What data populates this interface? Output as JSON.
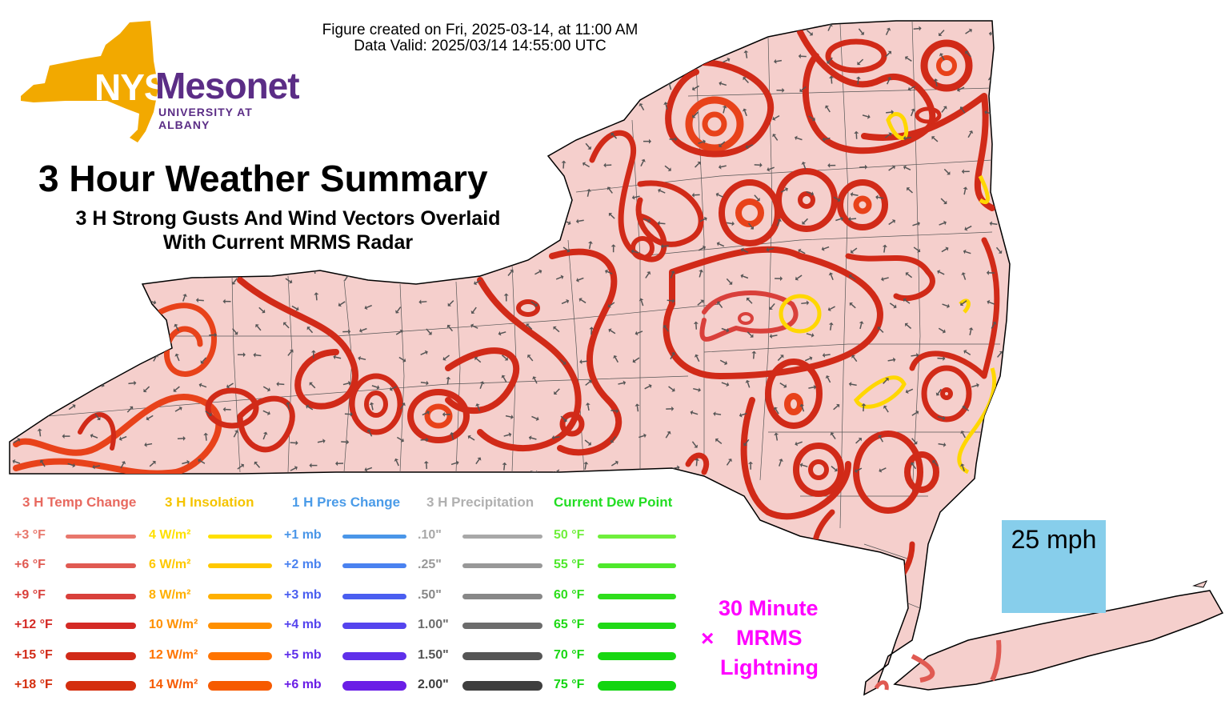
{
  "header": {
    "created_line": "Figure created on Fri, 2025-03-14, at 11:00 AM",
    "valid_line": "Data Valid: 2025/03/14 14:55:00 UTC"
  },
  "logo": {
    "nys": "NYS",
    "mesonet": "Mesonet",
    "university": "UNIVERSITY AT ALBANY",
    "state_color": "#f2a900",
    "brand_color": "#5b2d86"
  },
  "title": "3 Hour Weather Summary",
  "subtitle_line1": "3 H Strong Gusts And Wind Vectors Overlaid",
  "subtitle_line2": "With Current MRMS Radar",
  "legend": {
    "temp": {
      "header": "3 H Temp Change",
      "header_color": "#e8695f",
      "items": [
        {
          "label": "+3 °F",
          "color": "#e8776c"
        },
        {
          "label": "+6 °F",
          "color": "#e05a52"
        },
        {
          "label": "+9 °F",
          "color": "#d9403b"
        },
        {
          "label": "+12 °F",
          "color": "#d42a25"
        },
        {
          "label": "+15 °F",
          "color": "#d12a18"
        },
        {
          "label": "+18 °F",
          "color": "#d42e0e"
        }
      ]
    },
    "insolation": {
      "header": "3 H Insolation",
      "header_color": "#f5c400",
      "items": [
        {
          "label": "4 W/m²",
          "color": "#ffe000"
        },
        {
          "label": "6 W/m²",
          "color": "#ffc800"
        },
        {
          "label": "8 W/m²",
          "color": "#ffb000"
        },
        {
          "label": "10 W/m²",
          "color": "#ff9000"
        },
        {
          "label": "12 W/m²",
          "color": "#ff7400"
        },
        {
          "label": "14 W/m²",
          "color": "#f65a00"
        }
      ]
    },
    "pressure": {
      "header": "1 H Pres Change",
      "header_color": "#4a9be8",
      "items": [
        {
          "label": "+1 mb",
          "color": "#4a96e8"
        },
        {
          "label": "+2 mb",
          "color": "#4a82f0"
        },
        {
          "label": "+3 mb",
          "color": "#4a5ef0"
        },
        {
          "label": "+4 mb",
          "color": "#5544ee"
        },
        {
          "label": "+5 mb",
          "color": "#5f30ea"
        },
        {
          "label": "+6 mb",
          "color": "#6a1ee6"
        }
      ]
    },
    "precip": {
      "header": "3 H Precipitation",
      "header_color": "#b0b0b0",
      "items": [
        {
          "label": ".10\"",
          "color": "#a8a8a8"
        },
        {
          "label": ".25\"",
          "color": "#989898"
        },
        {
          "label": ".50\"",
          "color": "#888888"
        },
        {
          "label": "1.00\"",
          "color": "#6c6c6c"
        },
        {
          "label": "1.50\"",
          "color": "#555555"
        },
        {
          "label": "2.00\"",
          "color": "#3e3e3e"
        }
      ]
    },
    "dewpoint": {
      "header": "Current Dew Point",
      "header_color": "#22dd22",
      "items": [
        {
          "label": "50 °F",
          "color": "#6fef3c"
        },
        {
          "label": "55 °F",
          "color": "#4ee82c"
        },
        {
          "label": "60 °F",
          "color": "#2fde1c"
        },
        {
          "label": "65 °F",
          "color": "#20d916"
        },
        {
          "label": "70 °F",
          "color": "#18d712"
        },
        {
          "label": "75 °F",
          "color": "#12d510"
        }
      ]
    }
  },
  "wind_scale": {
    "label": "25 mph",
    "background": "#87ceeb"
  },
  "lightning": {
    "line1": "30 Minute",
    "line2": "MRMS",
    "line3": "Lightning",
    "marker": "×",
    "color": "#ff00ff"
  },
  "map": {
    "land_color": "#f5cfcc",
    "gust_contour_colors": [
      "#d12a18",
      "#e8421a",
      "#f0522a"
    ],
    "insolation_contour_color": "#ffd700"
  }
}
